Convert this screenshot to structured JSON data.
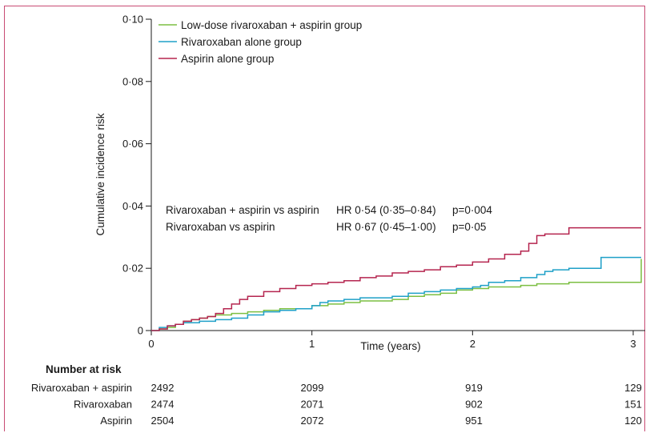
{
  "chart_data": {
    "type": "line",
    "xlabel": "Time (years)",
    "ylabel": "Cumulative incidence risk",
    "xlim": [
      0,
      3.05
    ],
    "ylim": [
      0,
      0.1
    ],
    "x_ticks": [
      "0",
      "1",
      "2",
      "3"
    ],
    "y_ticks": [
      "0",
      "0·02",
      "0·04",
      "0·06",
      "0·08",
      "0·10"
    ],
    "grid": false,
    "legend_position": "top-left",
    "series": [
      {
        "name": "Low-dose rivaroxaban + aspirin group",
        "color": "#7cbf42",
        "points": [
          [
            0,
            0
          ],
          [
            0.05,
            0.0005
          ],
          [
            0.1,
            0.001
          ],
          [
            0.15,
            0.002
          ],
          [
            0.2,
            0.003
          ],
          [
            0.25,
            0.0035
          ],
          [
            0.3,
            0.004
          ],
          [
            0.35,
            0.0045
          ],
          [
            0.4,
            0.005
          ],
          [
            0.5,
            0.0055
          ],
          [
            0.6,
            0.006
          ],
          [
            0.7,
            0.0065
          ],
          [
            0.8,
            0.007
          ],
          [
            1.0,
            0.008
          ],
          [
            1.1,
            0.0085
          ],
          [
            1.2,
            0.009
          ],
          [
            1.3,
            0.0095
          ],
          [
            1.4,
            0.0095
          ],
          [
            1.5,
            0.01
          ],
          [
            1.6,
            0.011
          ],
          [
            1.7,
            0.0115
          ],
          [
            1.8,
            0.012
          ],
          [
            1.9,
            0.013
          ],
          [
            2.0,
            0.0135
          ],
          [
            2.1,
            0.014
          ],
          [
            2.2,
            0.014
          ],
          [
            2.3,
            0.0145
          ],
          [
            2.4,
            0.015
          ],
          [
            2.5,
            0.015
          ],
          [
            2.6,
            0.0155
          ],
          [
            2.7,
            0.0155
          ],
          [
            2.85,
            0.0155
          ],
          [
            3.0,
            0.0155
          ],
          [
            3.05,
            0.023
          ]
        ]
      },
      {
        "name": "Rivaroxaban alone group",
        "color": "#1fa0c8",
        "points": [
          [
            0,
            0
          ],
          [
            0.05,
            0.001
          ],
          [
            0.1,
            0.0015
          ],
          [
            0.15,
            0.002
          ],
          [
            0.2,
            0.0025
          ],
          [
            0.3,
            0.003
          ],
          [
            0.4,
            0.0035
          ],
          [
            0.5,
            0.004
          ],
          [
            0.6,
            0.005
          ],
          [
            0.7,
            0.006
          ],
          [
            0.8,
            0.0065
          ],
          [
            0.9,
            0.007
          ],
          [
            1.0,
            0.008
          ],
          [
            1.05,
            0.009
          ],
          [
            1.1,
            0.0095
          ],
          [
            1.2,
            0.01
          ],
          [
            1.3,
            0.0105
          ],
          [
            1.5,
            0.011
          ],
          [
            1.6,
            0.012
          ],
          [
            1.7,
            0.0125
          ],
          [
            1.8,
            0.013
          ],
          [
            1.9,
            0.0135
          ],
          [
            2.0,
            0.014
          ],
          [
            2.05,
            0.0145
          ],
          [
            2.1,
            0.0155
          ],
          [
            2.2,
            0.016
          ],
          [
            2.3,
            0.017
          ],
          [
            2.4,
            0.018
          ],
          [
            2.45,
            0.019
          ],
          [
            2.5,
            0.0195
          ],
          [
            2.6,
            0.02
          ],
          [
            2.7,
            0.02
          ],
          [
            2.8,
            0.0235
          ],
          [
            2.9,
            0.0235
          ],
          [
            3.05,
            0.0235
          ]
        ]
      },
      {
        "name": "Aspirin alone group",
        "color": "#b5254f",
        "points": [
          [
            0,
            0
          ],
          [
            0.05,
            0.0005
          ],
          [
            0.1,
            0.0015
          ],
          [
            0.15,
            0.002
          ],
          [
            0.2,
            0.003
          ],
          [
            0.25,
            0.0035
          ],
          [
            0.3,
            0.004
          ],
          [
            0.35,
            0.0045
          ],
          [
            0.4,
            0.0055
          ],
          [
            0.45,
            0.007
          ],
          [
            0.5,
            0.0085
          ],
          [
            0.55,
            0.01
          ],
          [
            0.6,
            0.011
          ],
          [
            0.7,
            0.0125
          ],
          [
            0.8,
            0.0135
          ],
          [
            0.9,
            0.0145
          ],
          [
            1.0,
            0.015
          ],
          [
            1.1,
            0.0155
          ],
          [
            1.2,
            0.016
          ],
          [
            1.3,
            0.017
          ],
          [
            1.4,
            0.0175
          ],
          [
            1.5,
            0.0185
          ],
          [
            1.6,
            0.019
          ],
          [
            1.7,
            0.0195
          ],
          [
            1.8,
            0.0205
          ],
          [
            1.9,
            0.021
          ],
          [
            2.0,
            0.022
          ],
          [
            2.1,
            0.023
          ],
          [
            2.2,
            0.0245
          ],
          [
            2.3,
            0.0255
          ],
          [
            2.35,
            0.028
          ],
          [
            2.4,
            0.0305
          ],
          [
            2.45,
            0.031
          ],
          [
            2.55,
            0.031
          ],
          [
            2.6,
            0.033
          ],
          [
            3.05,
            0.033
          ]
        ]
      }
    ],
    "annotations": [
      {
        "label": "Rivaroxaban + aspirin vs aspirin",
        "hr": "HR 0·54 (0·35–0·84)",
        "p": "p=0·004"
      },
      {
        "label": "Rivaroxaban vs aspirin",
        "hr": "HR 0·67 (0·45–1·00)",
        "p": "p=0·05"
      }
    ]
  },
  "legend": {
    "items": [
      {
        "label": "Low-dose rivaroxaban + aspirin group",
        "color": "#7cbf42"
      },
      {
        "label": "Rivaroxaban alone group",
        "color": "#1fa0c8"
      },
      {
        "label": "Aspirin alone group",
        "color": "#b5254f"
      }
    ]
  },
  "risk_table": {
    "title": "Number at risk",
    "rows": [
      {
        "label": "Rivaroxaban + aspirin",
        "values": [
          "2492",
          "2099",
          "919",
          "129"
        ]
      },
      {
        "label": "Rivaroxaban",
        "values": [
          "2474",
          "2071",
          "902",
          "151"
        ]
      },
      {
        "label": "Aspirin",
        "values": [
          "2504",
          "2072",
          "951",
          "120"
        ]
      }
    ]
  },
  "frame_color": "#c84b73"
}
